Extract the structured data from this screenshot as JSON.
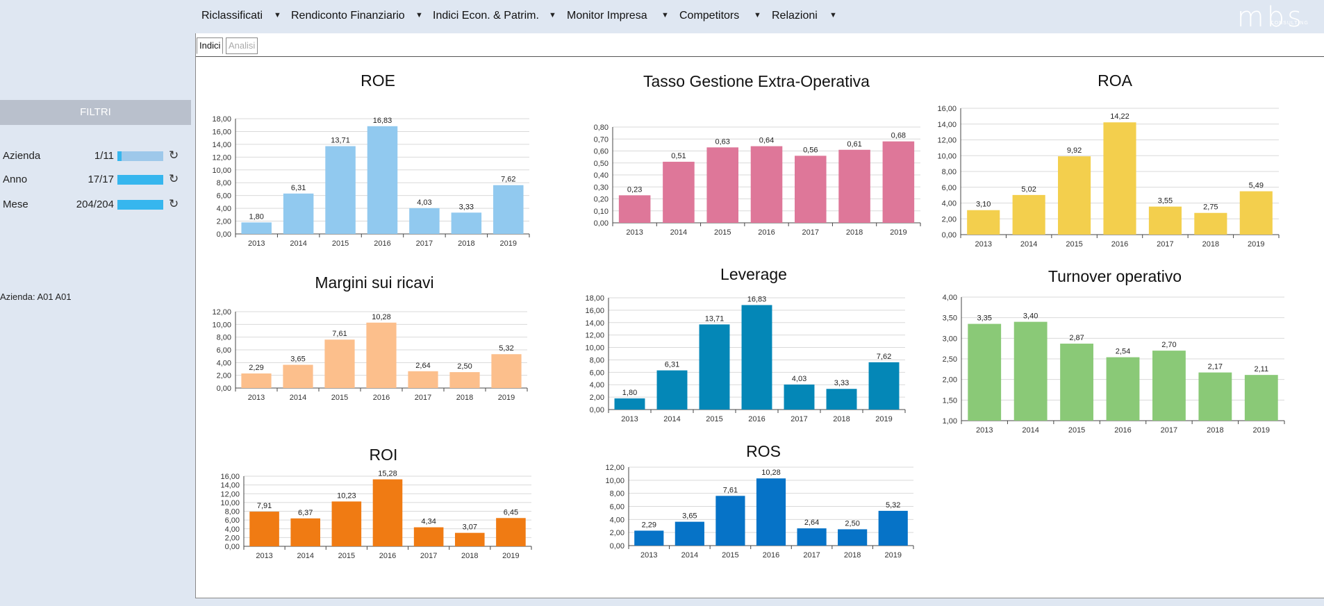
{
  "nav": {
    "items": [
      {
        "label": "Riclassificati"
      },
      {
        "label": "Rendiconto Finanziario"
      },
      {
        "label": "Indici Econ. & Patrim."
      },
      {
        "label": "Monitor Impresa"
      },
      {
        "label": "Competitors"
      },
      {
        "label": "Relazioni"
      }
    ],
    "arrow": "▼",
    "logo": "mbs",
    "logo_sub": "CONSULTING"
  },
  "sidebar": {
    "title": "FILTRI",
    "filters": [
      {
        "label": "Azienda",
        "count": "1/11",
        "fraction": 0.09,
        "icon": "reset-icon"
      },
      {
        "label": "Anno",
        "count": "17/17",
        "fraction": 1.0,
        "icon": "reset-icon"
      },
      {
        "label": "Mese",
        "count": "204/204",
        "fraction": 1.0,
        "icon": "reset-icon"
      }
    ],
    "reset_glyph": "↻",
    "company_line": "Azienda: A01 A01"
  },
  "tabs": [
    {
      "label": "Indici",
      "active": true
    },
    {
      "label": "Analisi",
      "active": false
    }
  ],
  "chart_data": [
    {
      "type": "bar",
      "title": "ROE",
      "color": "#91c9ef",
      "categories": [
        "2013",
        "2014",
        "2015",
        "2016",
        "2017",
        "2018",
        "2019"
      ],
      "values": [
        1.8,
        6.31,
        13.71,
        16.83,
        4.03,
        3.33,
        7.62
      ],
      "labels": [
        "1,80",
        "6,31",
        "13,71",
        "16,83",
        "4,03",
        "3,33",
        "7,62"
      ],
      "ylim": [
        0,
        18
      ],
      "step": 2,
      "yticks": [
        "0,00",
        "2,00",
        "4,00",
        "6,00",
        "8,00",
        "10,00",
        "12,00",
        "14,00",
        "16,00",
        "18,00"
      ]
    },
    {
      "type": "bar",
      "title": "Tasso Gestione Extra-Operativa",
      "color": "#de7799",
      "categories": [
        "2013",
        "2014",
        "2015",
        "2016",
        "2017",
        "2018",
        "2019"
      ],
      "values": [
        0.23,
        0.51,
        0.63,
        0.64,
        0.56,
        0.61,
        0.68
      ],
      "labels": [
        "0,23",
        "0,51",
        "0,63",
        "0,64",
        "0,56",
        "0,61",
        "0,68"
      ],
      "ylim": [
        0,
        0.8
      ],
      "step": 0.1,
      "yticks": [
        "0,00",
        "0,10",
        "0,20",
        "0,30",
        "0,40",
        "0,50",
        "0,60",
        "0,70",
        "0,80"
      ]
    },
    {
      "type": "bar",
      "title": "ROA",
      "color": "#f3cf4d",
      "categories": [
        "2013",
        "2014",
        "2015",
        "2016",
        "2017",
        "2018",
        "2019"
      ],
      "values": [
        3.1,
        5.02,
        9.92,
        14.22,
        3.55,
        2.75,
        5.49
      ],
      "labels": [
        "3,10",
        "5,02",
        "9,92",
        "14,22",
        "3,55",
        "2,75",
        "5,49"
      ],
      "ylim": [
        0,
        16
      ],
      "step": 2,
      "yticks": [
        "0,00",
        "2,00",
        "4,00",
        "6,00",
        "8,00",
        "10,00",
        "12,00",
        "14,00",
        "16,00"
      ]
    },
    {
      "type": "bar",
      "title": "Margini sui ricavi",
      "color": "#fcbf8c",
      "categories": [
        "2013",
        "2014",
        "2015",
        "2016",
        "2017",
        "2018",
        "2019"
      ],
      "values": [
        2.29,
        3.65,
        7.61,
        10.28,
        2.64,
        2.5,
        5.32
      ],
      "labels": [
        "2,29",
        "3,65",
        "7,61",
        "10,28",
        "2,64",
        "2,50",
        "5,32"
      ],
      "ylim": [
        0,
        12
      ],
      "step": 2,
      "yticks": [
        "0,00",
        "2,00",
        "4,00",
        "6,00",
        "8,00",
        "10,00",
        "12,00"
      ]
    },
    {
      "type": "bar",
      "title": "Leverage",
      "color": "#0487b7",
      "categories": [
        "2013",
        "2014",
        "2015",
        "2016",
        "2017",
        "2018",
        "2019"
      ],
      "values": [
        1.8,
        6.31,
        13.71,
        16.83,
        4.03,
        3.33,
        7.62
      ],
      "labels": [
        "1,80",
        "6,31",
        "13,71",
        "16,83",
        "4,03",
        "3,33",
        "7,62"
      ],
      "ylim": [
        0,
        18
      ],
      "step": 2,
      "yticks": [
        "0,00",
        "2,00",
        "4,00",
        "6,00",
        "8,00",
        "10,00",
        "12,00",
        "14,00",
        "16,00",
        "18,00"
      ]
    },
    {
      "type": "bar",
      "title": "Turnover operativo",
      "color": "#8ac977",
      "categories": [
        "2013",
        "2014",
        "2015",
        "2016",
        "2017",
        "2018",
        "2019"
      ],
      "values": [
        3.35,
        3.4,
        2.87,
        2.54,
        2.7,
        2.17,
        2.11
      ],
      "labels": [
        "3,35",
        "3,40",
        "2,87",
        "2,54",
        "2,70",
        "2,17",
        "2,11"
      ],
      "ylim": [
        1,
        4
      ],
      "step": 0.5,
      "yticks": [
        "1,00",
        "1,50",
        "2,00",
        "2,50",
        "3,00",
        "3,50",
        "4,00"
      ]
    },
    {
      "type": "bar",
      "title": "ROI",
      "color": "#f07b13",
      "categories": [
        "2013",
        "2014",
        "2015",
        "2016",
        "2017",
        "2018",
        "2019"
      ],
      "values": [
        7.91,
        6.37,
        10.23,
        15.28,
        4.34,
        3.07,
        6.45
      ],
      "labels": [
        "7,91",
        "6,37",
        "10,23",
        "15,28",
        "4,34",
        "3,07",
        "6,45"
      ],
      "ylim": [
        0,
        16
      ],
      "step": 2,
      "yticks": [
        "0,00",
        "2,00",
        "4,00",
        "6,00",
        "8,00",
        "10,00",
        "12,00",
        "14,00",
        "16,00"
      ]
    },
    {
      "type": "bar",
      "title": "ROS",
      "color": "#0673c7",
      "categories": [
        "2013",
        "2014",
        "2015",
        "2016",
        "2017",
        "2018",
        "2019"
      ],
      "values": [
        2.29,
        3.65,
        7.61,
        10.28,
        2.64,
        2.5,
        5.32
      ],
      "labels": [
        "2,29",
        "3,65",
        "7,61",
        "10,28",
        "2,64",
        "2,50",
        "5,32"
      ],
      "ylim": [
        0,
        12
      ],
      "step": 2,
      "yticks": [
        "0,00",
        "2,00",
        "4,00",
        "6,00",
        "8,00",
        "10,00",
        "12,00"
      ]
    }
  ]
}
